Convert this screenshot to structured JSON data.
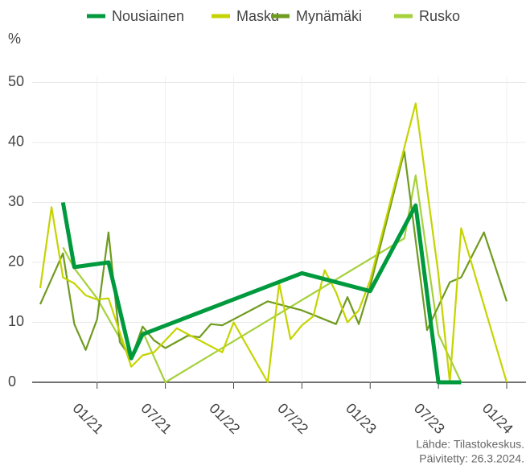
{
  "chart_data": {
    "type": "line",
    "y_unit": "%",
    "source": "Lähde: Tilastokeskus.",
    "updated": "Päivitetty: 26.3.2024.",
    "xlim": [
      "08/20",
      "01/24"
    ],
    "xticks": [
      "01/21",
      "07/21",
      "01/22",
      "07/22",
      "01/23",
      "07/23",
      "01/24"
    ],
    "ylim": [
      0,
      51
    ],
    "yticks": [
      0,
      10,
      20,
      30,
      40,
      50
    ],
    "grid": true,
    "legend": "top",
    "series": [
      {
        "name": "Nousiainen",
        "color": "#009a3e",
        "width": 5,
        "x": [
          "10/20",
          "11/20",
          "02/21",
          "04/21",
          "05/21",
          "07/22",
          "01/23",
          "05/23",
          "07/23",
          "09/23"
        ],
        "values": [
          30,
          19.2,
          20,
          4,
          8,
          18.2,
          15.2,
          29.5,
          0,
          0
        ]
      },
      {
        "name": "Masku",
        "color": "#c5d400",
        "width": 2.2,
        "x": [
          "08/20",
          "09/20",
          "10/20",
          "11/20",
          "12/20",
          "01/21",
          "02/21",
          "04/21",
          "05/21",
          "06/21",
          "08/21",
          "09/21",
          "10/21",
          "12/21",
          "01/22",
          "04/22",
          "05/22",
          "06/22",
          "07/22",
          "08/22",
          "09/22",
          "10/22",
          "11/22",
          "12/22",
          "01/23",
          "05/23",
          "07/23",
          "08/23",
          "09/23",
          "01/24"
        ],
        "values": [
          15.7,
          29.2,
          17.5,
          16.5,
          14.5,
          13.8,
          14,
          2.6,
          4.5,
          5,
          9,
          8,
          7,
          5,
          10,
          0,
          16.5,
          7.2,
          9.5,
          11,
          18.7,
          15,
          10,
          12,
          17,
          46.5,
          18,
          0,
          25.7,
          0
        ]
      },
      {
        "name": "Mynämäki",
        "color": "#6f9b1f",
        "width": 2.2,
        "x": [
          "08/20",
          "10/20",
          "11/20",
          "12/20",
          "01/21",
          "02/21",
          "03/21",
          "04/21",
          "05/21",
          "06/21",
          "07/21",
          "09/21",
          "10/21",
          "11/21",
          "12/21",
          "04/22",
          "07/22",
          "10/22",
          "11/22",
          "12/22",
          "01/23",
          "04/23",
          "06/23",
          "08/23",
          "09/23",
          "11/23",
          "01/24"
        ],
        "values": [
          13,
          21.5,
          9.7,
          5.4,
          10.5,
          25,
          6.7,
          4,
          9.3,
          7,
          5.7,
          7.8,
          7.5,
          9.7,
          9.5,
          13.5,
          12,
          9.7,
          14.2,
          9.7,
          16,
          38.5,
          8.7,
          16.7,
          17.5,
          25,
          13.5
        ]
      },
      {
        "name": "Rusko",
        "color": "#a6d13c",
        "width": 2.2,
        "x": [
          "10/20",
          "11/20",
          "01/21",
          "04/21",
          "05/21",
          "07/21",
          "04/23",
          "05/23",
          "07/23",
          "09/23"
        ],
        "values": [
          22.5,
          19,
          14,
          4,
          8.5,
          0,
          24,
          34.5,
          8,
          0
        ]
      }
    ]
  }
}
